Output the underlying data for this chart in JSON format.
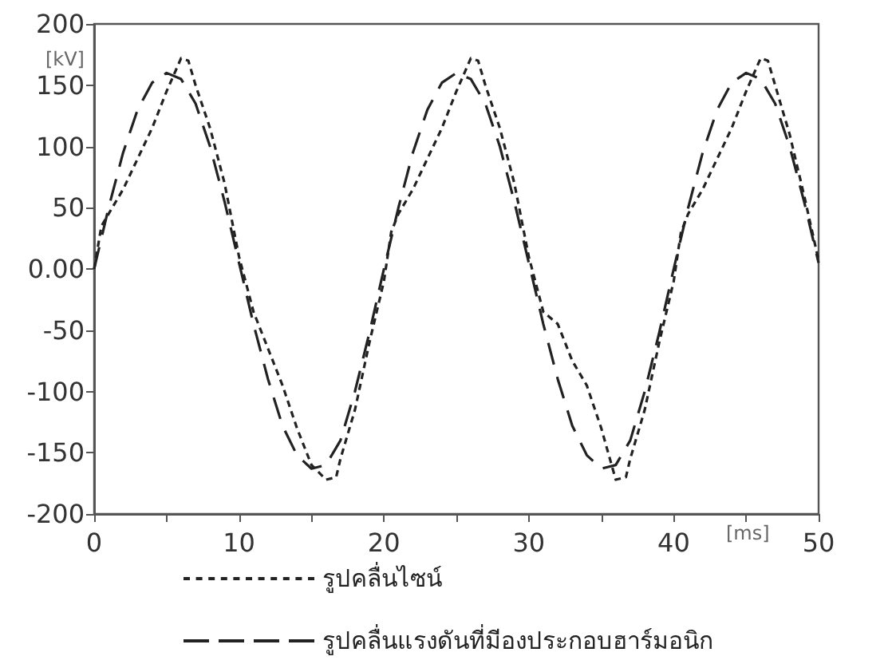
{
  "chart_data": {
    "type": "line",
    "xlabel": "[ms]",
    "ylabel": "[kV]",
    "xlim": [
      0,
      50
    ],
    "ylim": [
      -200,
      200
    ],
    "xticks": [
      0,
      {
        "value": 5,
        "label": null
      },
      10,
      {
        "value": 15,
        "label": null
      },
      20,
      {
        "value": 25,
        "label": null
      },
      30,
      {
        "value": 35,
        "label": null
      },
      40,
      {
        "value": 45,
        "label": null
      },
      50
    ],
    "yticks": [
      -200,
      -150,
      -100,
      -50,
      {
        "value": 0,
        "label": "0.00"
      },
      50,
      100,
      150,
      200
    ],
    "grid": false,
    "legend": "bottom",
    "marker": "none",
    "series": [
      {
        "name": "รูปคลื่นไซน์",
        "color": "#222222",
        "line_style": "dotted",
        "x": [
          0,
          0.5,
          1,
          2,
          3,
          4,
          5,
          6,
          6.5,
          7,
          8,
          9,
          10,
          11,
          12,
          13,
          14,
          15,
          16,
          16.7,
          17,
          18,
          19,
          20,
          20.5,
          21,
          22,
          23,
          24,
          25,
          26,
          26.5,
          27,
          28,
          29,
          30,
          31,
          32,
          33,
          34,
          35,
          36,
          36.7,
          37,
          38,
          39,
          40,
          40.5,
          41,
          42,
          43,
          44,
          45,
          46,
          46.5,
          47,
          48,
          49,
          50
        ],
        "values": [
          0,
          35,
          45,
          65,
          90,
          115,
          145,
          172,
          170,
          150,
          115,
          70,
          10,
          -35,
          -65,
          -95,
          -130,
          -160,
          -172,
          -170,
          -155,
          -115,
          -60,
          -10,
          30,
          45,
          65,
          90,
          115,
          145,
          172,
          170,
          150,
          115,
          70,
          10,
          -35,
          -45,
          -75,
          -95,
          -130,
          -172,
          -170,
          -155,
          -115,
          -60,
          -10,
          30,
          45,
          65,
          90,
          115,
          145,
          172,
          170,
          150,
          110,
          60,
          7
        ]
      },
      {
        "name": "รูปคลื่นแรงดันที่มีองประกอบฮาร์มอนิก",
        "color": "#222222",
        "line_style": "dashed",
        "x": [
          0,
          1,
          2,
          3,
          4,
          5,
          6,
          7,
          8,
          9,
          10,
          11,
          12,
          13,
          14,
          15,
          16,
          17,
          18,
          19,
          20,
          21,
          22,
          23,
          24,
          25,
          26,
          27,
          28,
          29,
          30,
          31,
          32,
          33,
          34,
          35,
          36,
          37,
          38,
          39,
          40,
          41,
          42,
          43,
          44,
          45,
          46,
          47,
          48,
          49,
          50
        ],
        "values": [
          0,
          50,
          95,
          130,
          152,
          160,
          155,
          135,
          100,
          55,
          5,
          -45,
          -90,
          -128,
          -152,
          -163,
          -160,
          -140,
          -100,
          -52,
          0,
          50,
          95,
          130,
          152,
          160,
          155,
          135,
          100,
          55,
          5,
          -45,
          -90,
          -128,
          -152,
          -163,
          -160,
          -140,
          -100,
          -52,
          0,
          50,
          95,
          130,
          152,
          160,
          155,
          135,
          100,
          55,
          5
        ]
      }
    ]
  }
}
